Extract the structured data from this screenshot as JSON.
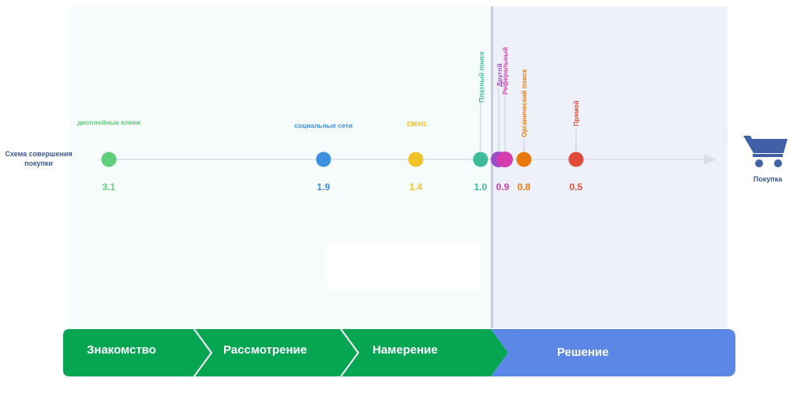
{
  "journey": {
    "start_label": "Схема совершения покупки",
    "end_label": "Покупка",
    "end_icon": "shopping-cart-icon",
    "channels": [
      {
        "key": "display",
        "label": "дисплейные клики",
        "value": "3.1",
        "color": "#5fcd79",
        "label_orientation": "horizontal"
      },
      {
        "key": "social",
        "label": "социальные сети",
        "value": "1.9",
        "color": "#3f8fe0",
        "label_orientation": "horizontal"
      },
      {
        "key": "email",
        "label": "EMAIL",
        "value": "1.4",
        "color": "#f2c326",
        "label_orientation": "horizontal"
      },
      {
        "key": "paid",
        "label": "Платный поиск",
        "value": "1.0",
        "color": "#3dbb9b",
        "label_orientation": "vertical"
      },
      {
        "key": "other",
        "label": "Другой",
        "value": "0.9",
        "color": "#9c4fc8",
        "label_orientation": "vertical"
      },
      {
        "key": "referral",
        "label": "Реферальный",
        "value": "",
        "color": "#d63cae",
        "label_orientation": "vertical"
      },
      {
        "key": "organic",
        "label": "Органический поиск",
        "value": "0.8",
        "color": "#e8780c",
        "label_orientation": "vertical"
      },
      {
        "key": "direct",
        "label": "Прямой",
        "value": "0.5",
        "color": "#e04a36",
        "label_orientation": "vertical"
      }
    ],
    "value_colors": {
      "0.9": "#d63cae"
    }
  },
  "stages": [
    {
      "label": "Знакомство",
      "color": "#05a551"
    },
    {
      "label": "Рассмотрение",
      "color": "#05a551"
    },
    {
      "label": "Намерение",
      "color": "#05a551"
    },
    {
      "label": "Решение",
      "color": "#5b88e6"
    }
  ],
  "colors": {
    "axis": "#d9dde6",
    "label_navy": "#3a5a96",
    "cart": "#3f5fa6"
  }
}
